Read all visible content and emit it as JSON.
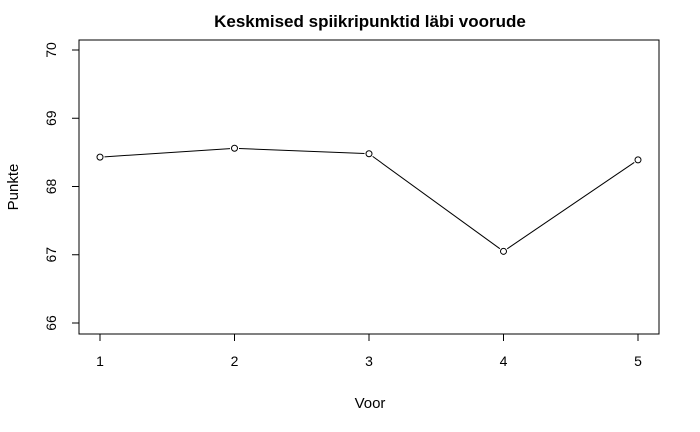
{
  "chart_data": {
    "type": "line",
    "title": "Keskmised spiikripunktid läbi voorude",
    "xlabel": "Voor",
    "ylabel": "Punkte",
    "x": [
      1,
      2,
      3,
      4,
      5
    ],
    "x_ticks": [
      "1",
      "2",
      "3",
      "4",
      "5"
    ],
    "y_ticks": [
      "66",
      "67",
      "68",
      "69",
      "70"
    ],
    "ylim": [
      66,
      70
    ],
    "series": [
      {
        "values": [
          68.43,
          68.56,
          68.48,
          67.05,
          68.39
        ]
      }
    ],
    "marker": "open-circle",
    "grid": false,
    "line_color": "#000000"
  }
}
